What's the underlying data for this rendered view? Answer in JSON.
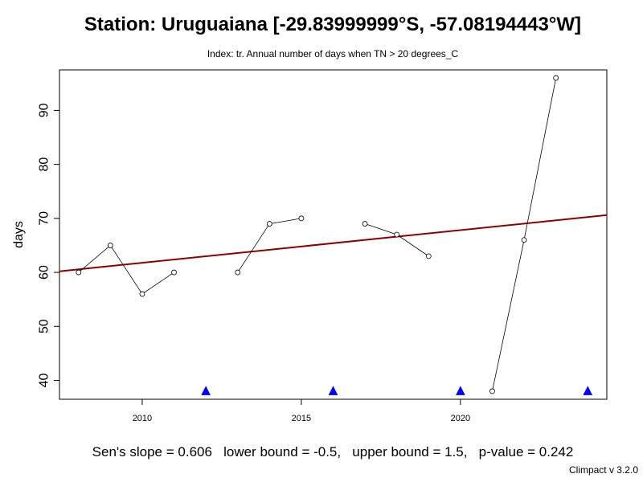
{
  "chart_data": {
    "type": "line",
    "title": "Station: Uruguaiana [-29.83999999°S, -57.08194443°W]",
    "subtitle": "Index: tr. Annual number of days when TN > 20 degrees_C",
    "xlabel": "",
    "ylabel": "days",
    "xlim": [
      2007.4,
      2024.6
    ],
    "ylim": [
      36.5,
      97.5
    ],
    "x_ticks": [
      2010,
      2015,
      2020
    ],
    "y_ticks": [
      40,
      50,
      60,
      70,
      80,
      90
    ],
    "series": [
      {
        "x": [
          2008,
          2009,
          2010,
          2011,
          2012,
          2013,
          2014,
          2015,
          2016,
          2017,
          2018,
          2019,
          2020,
          2021,
          2022,
          2023,
          2024
        ],
        "values": [
          60,
          65,
          56,
          60,
          null,
          60,
          69,
          70,
          null,
          69,
          67,
          63,
          null,
          38,
          66,
          96,
          null
        ]
      }
    ],
    "missing_markers": {
      "x": [
        2012,
        2016,
        2020,
        2024
      ],
      "value": 38,
      "color": "#0000ff"
    },
    "trend_line": {
      "start": [
        2007.4,
        60.2
      ],
      "end": [
        2024.6,
        70.6
      ],
      "color": "#8b0000"
    },
    "stats": {
      "text": "Sen's slope = 0.606   lower bound = -0.5,   upper bound = 1.5,   p-value = 0.242"
    },
    "footer": "Climpact v 3.2.0",
    "grid": false,
    "legend": "none"
  }
}
